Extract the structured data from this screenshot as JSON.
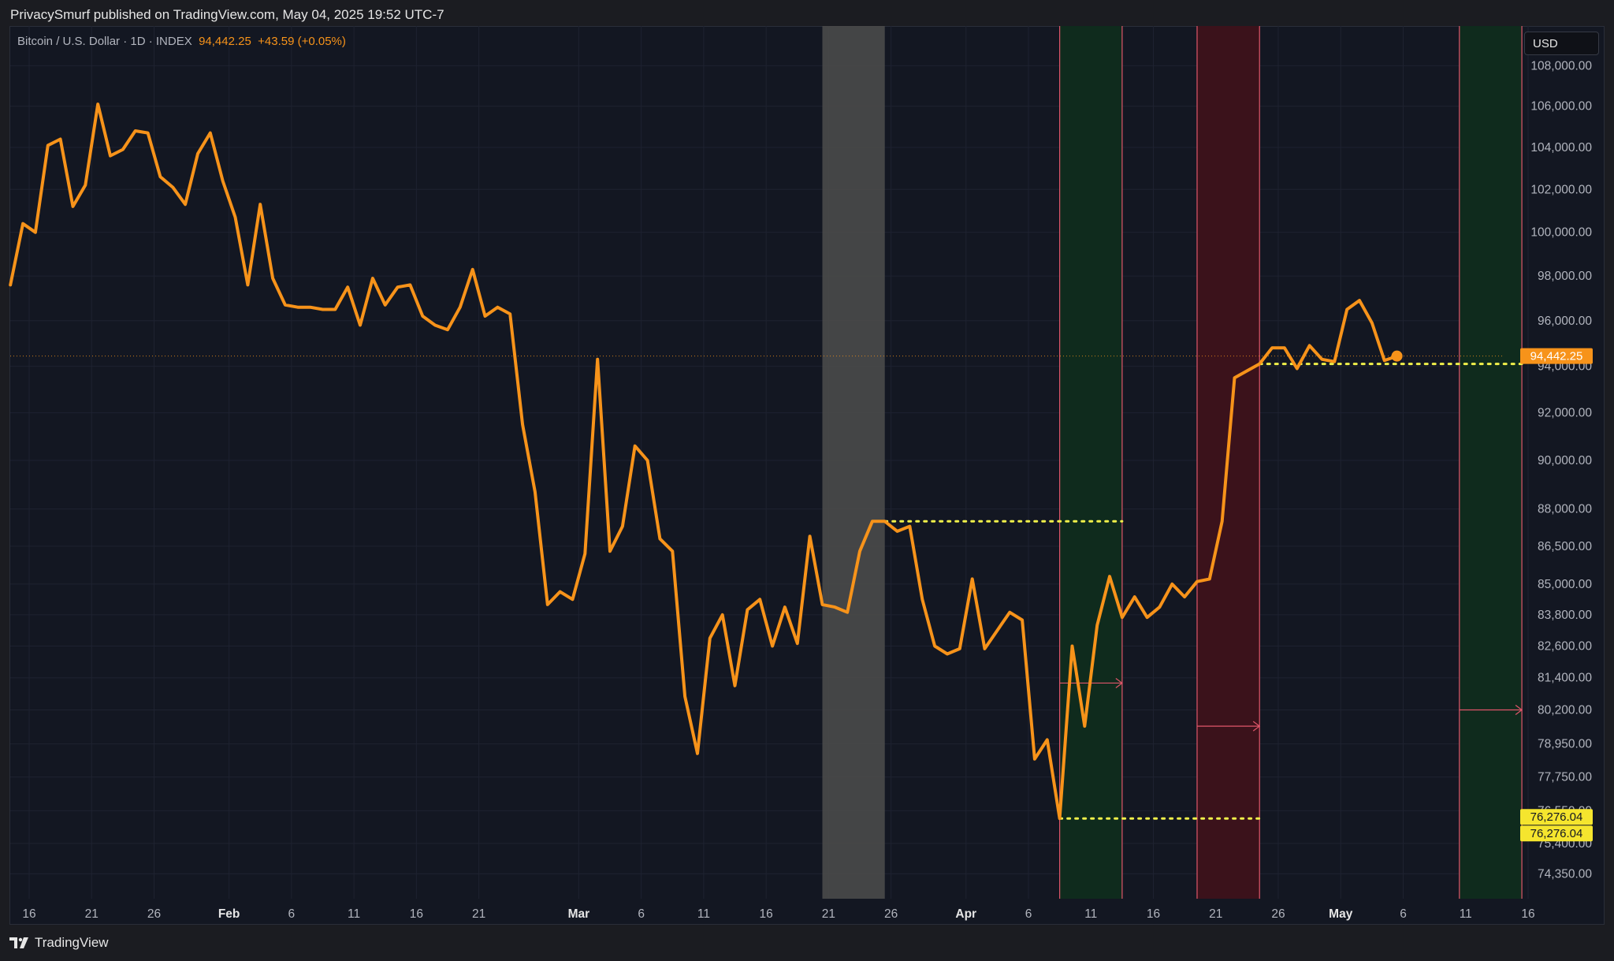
{
  "header": {
    "published_by": "PrivacySmurf published on TradingView.com, May 04, 2025 19:52 UTC-7"
  },
  "symbol": {
    "name": "Bitcoin / U.S. Dollar · 1D · INDEX",
    "price": "94,442.25",
    "change": "+43.59 (+0.05%)"
  },
  "currency_button": "USD",
  "footer": {
    "brand": "TradingView"
  },
  "colors": {
    "price_line": "#f7931a",
    "background": "#131722",
    "grid": "#1e2230",
    "green_zone": "#0f2b1d",
    "red_zone": "#3b121b",
    "gray_zone": "#4a4a4a",
    "zone_border": "#e0566a",
    "dotted_level": "#f0f04a"
  },
  "chart_data": {
    "type": "line",
    "title": "",
    "xlabel": "",
    "ylabel": "",
    "x_ticks": [
      {
        "label": "16",
        "day": 0
      },
      {
        "label": "21",
        "day": 5
      },
      {
        "label": "26",
        "day": 10
      },
      {
        "label": "Feb",
        "day": 16
      },
      {
        "label": "6",
        "day": 21
      },
      {
        "label": "11",
        "day": 26
      },
      {
        "label": "16",
        "day": 31
      },
      {
        "label": "21",
        "day": 36
      },
      {
        "label": "Mar",
        "day": 44
      },
      {
        "label": "6",
        "day": 49
      },
      {
        "label": "11",
        "day": 54
      },
      {
        "label": "16",
        "day": 59
      },
      {
        "label": "21",
        "day": 64
      },
      {
        "label": "26",
        "day": 69
      },
      {
        "label": "Apr",
        "day": 75
      },
      {
        "label": "6",
        "day": 80
      },
      {
        "label": "11",
        "day": 85
      },
      {
        "label": "16",
        "day": 90
      },
      {
        "label": "21",
        "day": 95
      },
      {
        "label": "26",
        "day": 100
      },
      {
        "label": "May",
        "day": 105
      },
      {
        "label": "6",
        "day": 110
      },
      {
        "label": "11",
        "day": 115
      },
      {
        "label": "16",
        "day": 120
      }
    ],
    "y_ticks": [
      "108,000.00",
      "106,000.00",
      "104,000.00",
      "102,000.00",
      "100,000.00",
      "98,000.00",
      "96,000.00",
      "94,000.00",
      "92,000.00",
      "90,000.00",
      "88,000.00",
      "86,500.00",
      "85,000.00",
      "83,800.00",
      "82,600.00",
      "81,400.00",
      "80,200.00",
      "78,950.00",
      "77,750.00",
      "76,550.00",
      "75,400.00",
      "74,350.00"
    ],
    "y_tick_values": [
      108000,
      106000,
      104000,
      102000,
      100000,
      98000,
      96000,
      94000,
      92000,
      90000,
      88000,
      86500,
      85000,
      83800,
      82600,
      81400,
      80200,
      78950,
      77750,
      76550,
      75400,
      74350
    ],
    "y_scale": "log",
    "ylim": [
      73500,
      110000
    ],
    "grid": true,
    "series": [
      {
        "x": [
          -1.5,
          -0.5,
          0.5,
          1.5,
          2.5,
          3.5,
          4.5,
          5.5,
          6.5,
          7.5,
          8.5,
          9.5,
          10.5,
          11.5,
          12.5,
          13.5,
          14.5,
          15.5,
          16.5,
          17.5,
          18.5,
          19.5,
          20.5,
          21.5,
          22.5,
          23.5,
          24.5,
          25.5,
          26.5,
          27.5,
          28.5,
          29.5,
          30.5,
          31.5,
          32.5,
          33.5,
          34.5,
          35.5,
          36.5,
          37.5,
          38.5,
          39.5,
          40.5,
          41.5,
          42.5,
          43.5,
          44.5,
          45.5,
          46.5,
          47.5,
          48.5,
          49.5,
          50.5,
          51.5,
          52.5,
          53.5,
          54.5,
          55.5,
          56.5,
          57.5,
          58.5,
          59.5,
          60.5,
          61.5,
          62.5,
          63.5,
          64.5,
          65.5,
          66.5,
          67.5,
          68.5,
          69.5,
          70.5,
          71.5,
          72.5,
          73.5,
          74.5,
          75.5,
          76.5,
          77.5,
          78.5,
          79.5,
          80.5,
          81.5,
          82.5,
          83.5,
          84.5,
          85.5,
          86.5,
          87.5,
          88.5,
          89.5,
          90.5,
          91.5,
          92.5,
          93.5,
          94.5,
          95.5,
          96.5,
          97.5,
          98.5,
          99.5,
          100.5,
          101.5,
          102.5,
          103.5,
          104.5,
          105.5,
          106.5,
          107.5,
          108.5,
          109.5
        ],
        "values": [
          97600,
          100400,
          100000,
          104100,
          104400,
          101200,
          102200,
          106100,
          103600,
          103900,
          104800,
          104700,
          102600,
          102100,
          101300,
          103700,
          104700,
          102400,
          100700,
          97600,
          101300,
          97900,
          96700,
          96600,
          96600,
          96500,
          96500,
          97500,
          95800,
          97900,
          96700,
          97500,
          97600,
          96200,
          95800,
          95600,
          96600,
          98300,
          96200,
          96600,
          96300,
          91500,
          88700,
          84200,
          84700,
          84400,
          86200,
          94300,
          86300,
          87300,
          90600,
          90000,
          86800,
          86300,
          80700,
          78600,
          82900,
          83800,
          81100,
          84000,
          84400,
          82600,
          84100,
          82700,
          86900,
          84200,
          84100,
          83900,
          86300,
          87500,
          87500,
          87100,
          87300,
          84400,
          82600,
          82300,
          82500,
          85200,
          82500,
          83200,
          83900,
          83600,
          78400,
          79100,
          76276,
          82600,
          79600,
          83400,
          85300,
          83700,
          84500,
          83700,
          84100,
          85000,
          84500,
          85100,
          85200,
          87500,
          93500,
          93800,
          94100,
          94800,
          94800,
          93900,
          94900,
          94300,
          94200,
          96500,
          96900,
          95900,
          94250,
          94442.25
        ]
      }
    ],
    "last_value_label": "94,442.25",
    "zones": [
      {
        "kind": "gray",
        "from_day": 63.5,
        "to_day": 68.5
      },
      {
        "kind": "green",
        "from_day": 82.5,
        "to_day": 87.5
      },
      {
        "kind": "red",
        "from_day": 93.5,
        "to_day": 98.5
      },
      {
        "kind": "green",
        "from_day": 114.5,
        "to_day": 119.5
      }
    ],
    "levels": [
      {
        "value": 87500,
        "from_day": 68.5,
        "to_day": 87.5,
        "style": "dotted"
      },
      {
        "value": 76276.04,
        "from_day": 82.5,
        "to_day": 98.5,
        "style": "dotted"
      },
      {
        "value": 94100,
        "from_day": 98.5,
        "to_day": 119.5,
        "style": "dotted"
      }
    ],
    "arrows": [
      {
        "value": 81200,
        "from_day": 82.5,
        "to_day": 87.5
      },
      {
        "value": 79600,
        "from_day": 93.5,
        "to_day": 98.5
      },
      {
        "value": 80200,
        "from_day": 114.5,
        "to_day": 119.5
      }
    ],
    "level_badges": [
      "76,276.04",
      "76,276.04"
    ]
  }
}
